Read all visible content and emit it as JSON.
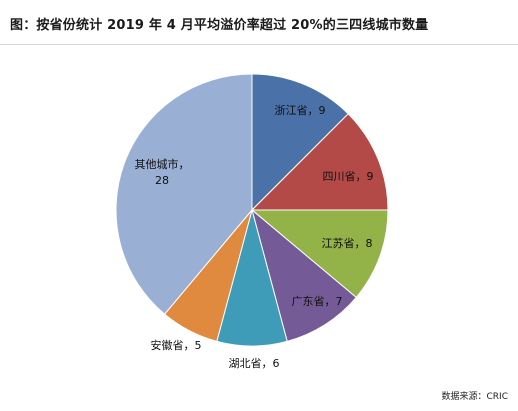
{
  "chart_data": {
    "type": "pie",
    "title": "图：按省份统计 2019 年 4 月平均溢价率超过 20%的三四线城市数量",
    "slices": [
      {
        "name": "浙江省",
        "value": 9,
        "label": "浙江省，9",
        "color": "#4a72a8"
      },
      {
        "name": "四川省",
        "value": 9,
        "label": "四川省，9",
        "color": "#b34a47"
      },
      {
        "name": "江苏省",
        "value": 8,
        "label": "江苏省，8",
        "color": "#93b247"
      },
      {
        "name": "广东省",
        "value": 7,
        "label": "广东省，7",
        "color": "#745b97"
      },
      {
        "name": "湖北省",
        "value": 6,
        "label": "湖北省，6",
        "color": "#3f9cb8"
      },
      {
        "name": "安徽省",
        "value": 5,
        "label": "安徽省，5",
        "color": "#e08a3f"
      },
      {
        "name": "其他城市",
        "value": 28,
        "label_lines": [
          "其他城市，",
          "28"
        ],
        "color": "#9aafd4"
      }
    ],
    "source": "数据来源：CRIC"
  }
}
